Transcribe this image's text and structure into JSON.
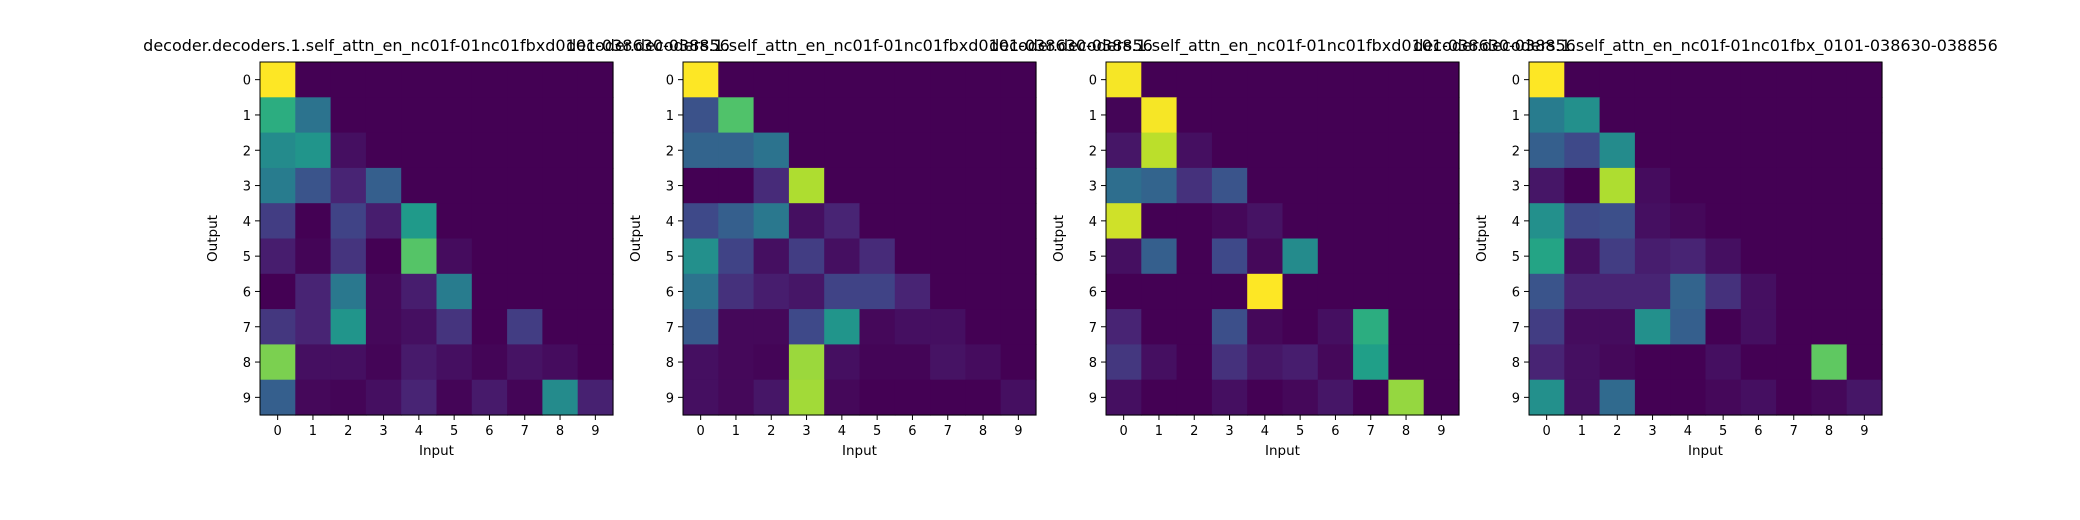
{
  "chart_data": [
    {
      "type": "heatmap",
      "title": "decoder.decoders.1.self_attn_en_nc01f-01nc01fbxd0101-038630-038856",
      "xlabel": "Input",
      "ylabel": "Output",
      "x_ticks": [
        "0",
        "1",
        "2",
        "3",
        "4",
        "5",
        "6",
        "7",
        "8",
        "9"
      ],
      "y_ticks": [
        "0",
        "1",
        "2",
        "3",
        "4",
        "5",
        "6",
        "7",
        "8",
        "9"
      ],
      "colormap": "viridis",
      "vmin": 0,
      "vmax": 1,
      "values": [
        [
          1.0,
          0,
          0,
          0,
          0,
          0,
          0,
          0,
          0,
          0
        ],
        [
          0.62,
          0.38,
          0,
          0,
          0,
          0,
          0,
          0,
          0,
          0
        ],
        [
          0.48,
          0.52,
          0.04,
          0,
          0,
          0,
          0,
          0,
          0,
          0
        ],
        [
          0.42,
          0.26,
          0.1,
          0.3,
          0,
          0,
          0,
          0,
          0,
          0
        ],
        [
          0.18,
          0.0,
          0.2,
          0.08,
          0.54,
          0,
          0,
          0,
          0,
          0
        ],
        [
          0.08,
          0.01,
          0.15,
          0.0,
          0.73,
          0.03,
          0,
          0,
          0,
          0
        ],
        [
          0.0,
          0.1,
          0.4,
          0.02,
          0.08,
          0.42,
          0.0,
          0,
          0,
          0
        ],
        [
          0.16,
          0.1,
          0.52,
          0.02,
          0.04,
          0.15,
          0.0,
          0.18,
          0,
          0
        ],
        [
          0.8,
          0.04,
          0.04,
          0.01,
          0.07,
          0.04,
          0.01,
          0.05,
          0.03,
          0
        ],
        [
          0.3,
          0.02,
          0.01,
          0.04,
          0.1,
          0.01,
          0.07,
          0.01,
          0.48,
          0.09
        ]
      ]
    },
    {
      "type": "heatmap",
      "title": "decoder.decoders.1.self_attn_en_nc01f-01nc01fbxd0101-038630-038856",
      "xlabel": "Input",
      "ylabel": "Output",
      "x_ticks": [
        "0",
        "1",
        "2",
        "3",
        "4",
        "5",
        "6",
        "7",
        "8",
        "9"
      ],
      "y_ticks": [
        "0",
        "1",
        "2",
        "3",
        "4",
        "5",
        "6",
        "7",
        "8",
        "9"
      ],
      "colormap": "viridis",
      "vmin": 0,
      "vmax": 1,
      "values": [
        [
          1.0,
          0,
          0,
          0,
          0,
          0,
          0,
          0,
          0,
          0
        ],
        [
          0.25,
          0.72,
          0,
          0,
          0,
          0,
          0,
          0,
          0,
          0
        ],
        [
          0.32,
          0.32,
          0.38,
          0,
          0,
          0,
          0,
          0,
          0,
          0
        ],
        [
          0.0,
          0.0,
          0.12,
          0.88,
          0,
          0,
          0,
          0,
          0,
          0
        ],
        [
          0.22,
          0.3,
          0.4,
          0.04,
          0.1,
          0,
          0,
          0,
          0,
          0
        ],
        [
          0.5,
          0.2,
          0.04,
          0.18,
          0.04,
          0.12,
          0,
          0,
          0,
          0
        ],
        [
          0.38,
          0.14,
          0.08,
          0.06,
          0.2,
          0.2,
          0.1,
          0,
          0,
          0
        ],
        [
          0.28,
          0.02,
          0.02,
          0.22,
          0.52,
          0.02,
          0.04,
          0.04,
          0,
          0
        ],
        [
          0.04,
          0.02,
          0.01,
          0.85,
          0.04,
          0.01,
          0.01,
          0.05,
          0.03,
          0
        ],
        [
          0.04,
          0.02,
          0.06,
          0.86,
          0.02,
          0.0,
          0.0,
          0.0,
          0.0,
          0.04
        ]
      ]
    },
    {
      "type": "heatmap",
      "title": "decoder.decoders.1.self_attn_en_nc01f-01nc01fbxd0101-038630-038856",
      "xlabel": "Input",
      "ylabel": "Output",
      "x_ticks": [
        "0",
        "1",
        "2",
        "3",
        "4",
        "5",
        "6",
        "7",
        "8",
        "9"
      ],
      "y_ticks": [
        "0",
        "1",
        "2",
        "3",
        "4",
        "5",
        "6",
        "7",
        "8",
        "9"
      ],
      "colormap": "viridis",
      "vmin": 0,
      "vmax": 1,
      "values": [
        [
          0.99,
          0,
          0,
          0,
          0,
          0,
          0,
          0,
          0,
          0
        ],
        [
          0.01,
          0.99,
          0,
          0,
          0,
          0,
          0,
          0,
          0,
          0
        ],
        [
          0.06,
          0.9,
          0.04,
          0,
          0,
          0,
          0,
          0,
          0,
          0
        ],
        [
          0.36,
          0.32,
          0.14,
          0.26,
          0,
          0,
          0,
          0,
          0,
          0
        ],
        [
          0.93,
          0.0,
          0.0,
          0.02,
          0.05,
          0,
          0,
          0,
          0,
          0
        ],
        [
          0.04,
          0.3,
          0.0,
          0.22,
          0.02,
          0.48,
          0,
          0,
          0,
          0
        ],
        [
          0.0,
          0.0,
          0.0,
          0.0,
          1.0,
          0.0,
          0.0,
          0,
          0,
          0
        ],
        [
          0.1,
          0.0,
          0.0,
          0.24,
          0.02,
          0.0,
          0.04,
          0.62,
          0,
          0
        ],
        [
          0.16,
          0.04,
          0.0,
          0.14,
          0.06,
          0.08,
          0.02,
          0.56,
          0.0,
          0
        ],
        [
          0.04,
          0.0,
          0.0,
          0.04,
          0.0,
          0.02,
          0.06,
          0.0,
          0.84,
          0.0
        ]
      ]
    },
    {
      "type": "heatmap",
      "title": "decoder.decoders.1.self_attn_en_nc01f-01nc01fbx_0101-038630-038856",
      "xlabel": "Input",
      "ylabel": "Output",
      "x_ticks": [
        "0",
        "1",
        "2",
        "3",
        "4",
        "5",
        "6",
        "7",
        "8",
        "9"
      ],
      "y_ticks": [
        "0",
        "1",
        "2",
        "3",
        "4",
        "5",
        "6",
        "7",
        "8",
        "9"
      ],
      "colormap": "viridis",
      "vmin": 0,
      "vmax": 1,
      "values": [
        [
          1.0,
          0,
          0,
          0,
          0,
          0,
          0,
          0,
          0,
          0
        ],
        [
          0.42,
          0.5,
          0,
          0,
          0,
          0,
          0,
          0,
          0,
          0
        ],
        [
          0.3,
          0.22,
          0.48,
          0,
          0,
          0,
          0,
          0,
          0,
          0
        ],
        [
          0.06,
          0.0,
          0.88,
          0.03,
          0,
          0,
          0,
          0,
          0,
          0
        ],
        [
          0.5,
          0.22,
          0.24,
          0.04,
          0.02,
          0,
          0,
          0,
          0,
          0
        ],
        [
          0.58,
          0.04,
          0.18,
          0.08,
          0.1,
          0.04,
          0,
          0,
          0,
          0
        ],
        [
          0.26,
          0.1,
          0.1,
          0.1,
          0.32,
          0.14,
          0.04,
          0,
          0,
          0
        ],
        [
          0.18,
          0.03,
          0.03,
          0.5,
          0.3,
          0.0,
          0.04,
          0.0,
          0,
          0
        ],
        [
          0.1,
          0.04,
          0.02,
          0.0,
          0.0,
          0.04,
          0.0,
          0.0,
          0.75,
          0
        ],
        [
          0.5,
          0.04,
          0.34,
          0.0,
          0.0,
          0.02,
          0.04,
          0.0,
          0.02,
          0.06
        ]
      ]
    }
  ]
}
